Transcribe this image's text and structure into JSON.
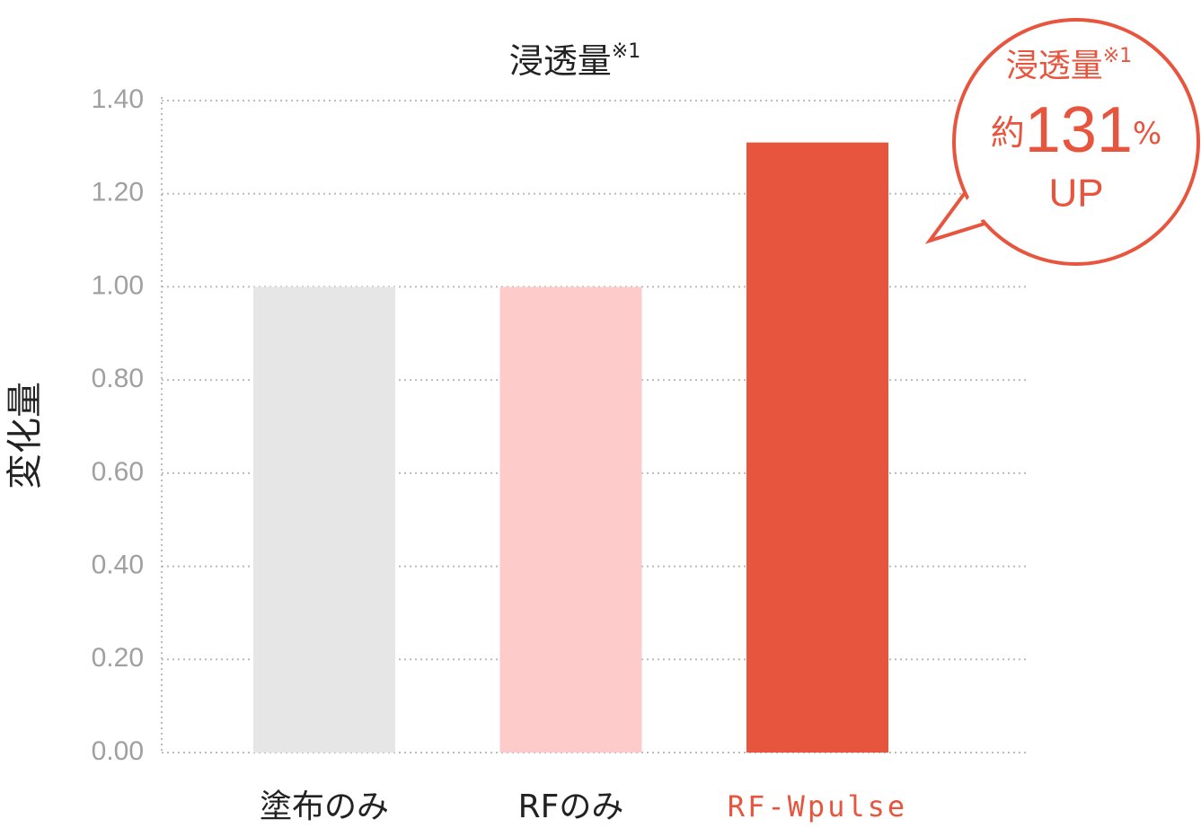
{
  "chart_data": {
    "type": "bar",
    "title": "浸透量",
    "title_note": "※1",
    "y_label": "変化量",
    "categories": [
      "塗布のみ",
      "RFのみ",
      "RF-Wpulse"
    ],
    "values": [
      1.0,
      1.0,
      1.31
    ],
    "colors": [
      "#e6e6e6",
      "#fccbca",
      "#e8553e"
    ],
    "label_colors": [
      "#222222",
      "#222222",
      "#e8553e"
    ],
    "ylim": [
      0,
      1.4
    ],
    "yticks": [
      {
        "value": 0,
        "label": "0.00"
      },
      {
        "value": 0.2,
        "label": "0.20"
      },
      {
        "value": 0.4,
        "label": "0.40"
      },
      {
        "value": 0.6,
        "label": "0.60"
      },
      {
        "value": 0.8,
        "label": "0.80"
      },
      {
        "value": 1.0,
        "label": "1.00"
      },
      {
        "value": 1.2,
        "label": "1.20"
      },
      {
        "value": 1.4,
        "label": "1.40"
      }
    ],
    "grid": true,
    "callout": {
      "title": "浸透量",
      "note": "※1",
      "prefix": "約",
      "value": 131,
      "unit": "%",
      "suffix": "UP",
      "color": "#e8553e"
    }
  }
}
